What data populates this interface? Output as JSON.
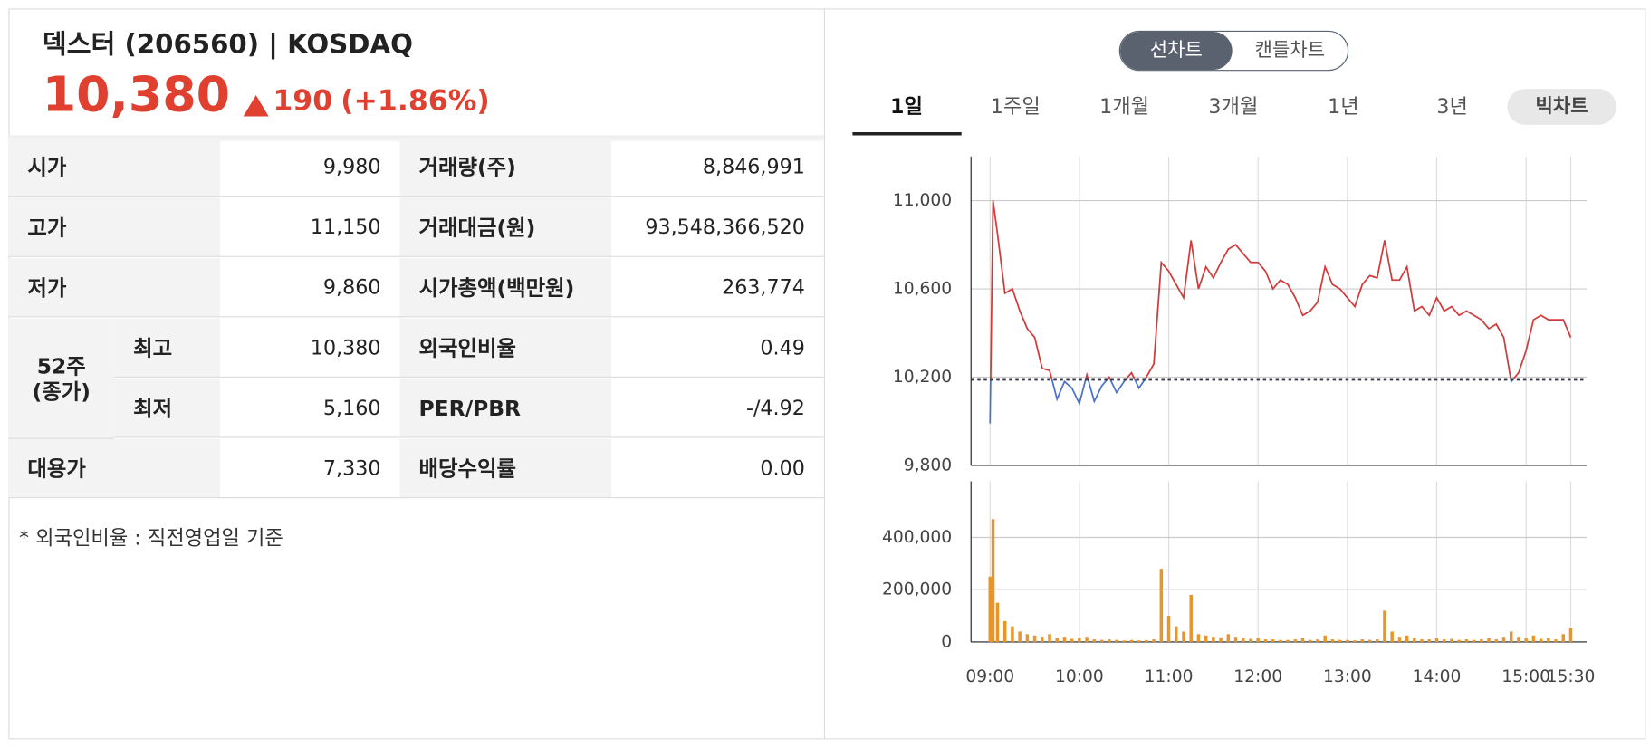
{
  "header": {
    "name": "덱스터 (206560) | KOSDAQ",
    "price": "10,380",
    "change": "190",
    "change_pct": "(+1.86%)"
  },
  "stats": {
    "left": [
      [
        "시가",
        "9,980"
      ],
      [
        "고가",
        "11,150"
      ],
      [
        "저가",
        "9,860"
      ],
      [
        "최고",
        "10,380"
      ],
      [
        "최저",
        "5,160"
      ],
      [
        "대용가",
        "7,330"
      ]
    ],
    "group": [
      "52주",
      "(종가)"
    ],
    "right": [
      [
        "거래량(주)",
        "8,846,991"
      ],
      [
        "거래대금(원)",
        "93,548,366,520"
      ],
      [
        "시가총액(백만원)",
        "263,774"
      ],
      [
        "외국인비율",
        "0.49"
      ],
      [
        "PER/PBR",
        "-/4.92"
      ],
      [
        "배당수익률",
        "0.00"
      ]
    ]
  },
  "note": "* 외국인비율 : 직전영업일 기준",
  "toggle": [
    "선차트",
    "캔들차트"
  ],
  "periods": [
    "1일",
    "1주일",
    "1개월",
    "3개월",
    "1년",
    "3년"
  ],
  "bigchart": "빅차트",
  "chart_data": [
    {
      "type": "line",
      "color": "#d03c3c",
      "below_color": "#4a72c8",
      "base": 10190,
      "x": [
        "09:00",
        "09:02",
        "09:05",
        "09:10",
        "09:15",
        "09:20",
        "09:25",
        "09:30",
        "09:35",
        "09:40",
        "09:45",
        "09:50",
        "09:55",
        "10:00",
        "10:05",
        "10:10",
        "10:15",
        "10:20",
        "10:25",
        "10:30",
        "10:35",
        "10:40",
        "10:45",
        "10:50",
        "10:55",
        "11:00",
        "11:05",
        "11:10",
        "11:15",
        "11:20",
        "11:25",
        "11:30",
        "11:35",
        "11:40",
        "11:45",
        "11:50",
        "11:55",
        "12:00",
        "12:05",
        "12:10",
        "12:15",
        "12:20",
        "12:25",
        "12:30",
        "12:35",
        "12:40",
        "12:45",
        "12:50",
        "12:55",
        "13:00",
        "13:05",
        "13:10",
        "13:15",
        "13:20",
        "13:25",
        "13:30",
        "13:35",
        "13:40",
        "13:45",
        "13:50",
        "13:55",
        "14:00",
        "14:05",
        "14:10",
        "14:15",
        "14:20",
        "14:25",
        "14:30",
        "14:35",
        "14:40",
        "14:45",
        "14:50",
        "14:55",
        "15:00",
        "15:05",
        "15:10",
        "15:15",
        "15:20",
        "15:25",
        "15:30"
      ],
      "values": [
        9990,
        11000,
        10850,
        10580,
        10600,
        10500,
        10420,
        10380,
        10240,
        10230,
        10100,
        10180,
        10150,
        10080,
        10210,
        10090,
        10160,
        10200,
        10130,
        10180,
        10220,
        10150,
        10200,
        10260,
        10720,
        10680,
        10620,
        10560,
        10820,
        10600,
        10700,
        10650,
        10720,
        10780,
        10800,
        10760,
        10720,
        10720,
        10680,
        10600,
        10640,
        10620,
        10560,
        10480,
        10500,
        10540,
        10700,
        10620,
        10600,
        10560,
        10520,
        10620,
        10660,
        10650,
        10820,
        10640,
        10640,
        10700,
        10500,
        10520,
        10480,
        10560,
        10500,
        10520,
        10480,
        10500,
        10480,
        10460,
        10420,
        10440,
        10380,
        10180,
        10220,
        10320,
        10460,
        10480,
        10460,
        10460,
        10460,
        10380
      ],
      "xlim": [
        "09:00",
        "15:30"
      ],
      "ylim": [
        9800,
        11200
      ],
      "yticks": [
        {
          "value": 9800,
          "label": "9,800"
        },
        {
          "value": 10200,
          "label": "10,200"
        },
        {
          "value": 10600,
          "label": "10,600"
        },
        {
          "value": 11000,
          "label": "11,000"
        }
      ],
      "grid": true
    },
    {
      "type": "bar",
      "color": "#e8962a",
      "x": [
        "09:00",
        "09:02",
        "09:05",
        "09:10",
        "09:15",
        "09:20",
        "09:25",
        "09:30",
        "09:35",
        "09:40",
        "09:45",
        "09:50",
        "09:55",
        "10:00",
        "10:05",
        "10:10",
        "10:15",
        "10:20",
        "10:25",
        "10:30",
        "10:35",
        "10:40",
        "10:45",
        "10:50",
        "10:55",
        "11:00",
        "11:05",
        "11:10",
        "11:15",
        "11:20",
        "11:25",
        "11:30",
        "11:35",
        "11:40",
        "11:45",
        "11:50",
        "11:55",
        "12:00",
        "12:05",
        "12:10",
        "12:15",
        "12:20",
        "12:25",
        "12:30",
        "12:35",
        "12:40",
        "12:45",
        "12:50",
        "12:55",
        "13:00",
        "13:05",
        "13:10",
        "13:15",
        "13:20",
        "13:25",
        "13:30",
        "13:35",
        "13:40",
        "13:45",
        "13:50",
        "13:55",
        "14:00",
        "14:05",
        "14:10",
        "14:15",
        "14:20",
        "14:25",
        "14:30",
        "14:35",
        "14:40",
        "14:45",
        "14:50",
        "14:55",
        "15:00",
        "15:05",
        "15:10",
        "15:15",
        "15:20",
        "15:25",
        "15:30"
      ],
      "values": [
        250000,
        470000,
        150000,
        80000,
        60000,
        40000,
        30000,
        25000,
        20000,
        30000,
        15000,
        20000,
        12000,
        15000,
        20000,
        10000,
        8000,
        10000,
        8000,
        6000,
        8000,
        6000,
        7000,
        10000,
        280000,
        100000,
        60000,
        40000,
        180000,
        30000,
        25000,
        20000,
        18000,
        30000,
        20000,
        15000,
        12000,
        15000,
        10000,
        10000,
        8000,
        8000,
        10000,
        15000,
        8000,
        10000,
        25000,
        10000,
        8000,
        8000,
        6000,
        10000,
        8000,
        10000,
        120000,
        40000,
        20000,
        25000,
        15000,
        10000,
        10000,
        15000,
        10000,
        12000,
        8000,
        10000,
        8000,
        10000,
        15000,
        10000,
        20000,
        40000,
        20000,
        15000,
        25000,
        12000,
        15000,
        10000,
        30000,
        55000
      ],
      "xlim": [
        "09:00",
        "15:30"
      ],
      "ylim": [
        0,
        615000
      ],
      "xticks": [
        "09:00",
        "10:00",
        "11:00",
        "12:00",
        "13:00",
        "14:00",
        "15:00",
        "15:30"
      ],
      "yticks": [
        0,
        {
          "value": 200000,
          "label": "200,000"
        },
        {
          "value": 400000,
          "label": "400,000"
        }
      ],
      "grid": true
    }
  ]
}
